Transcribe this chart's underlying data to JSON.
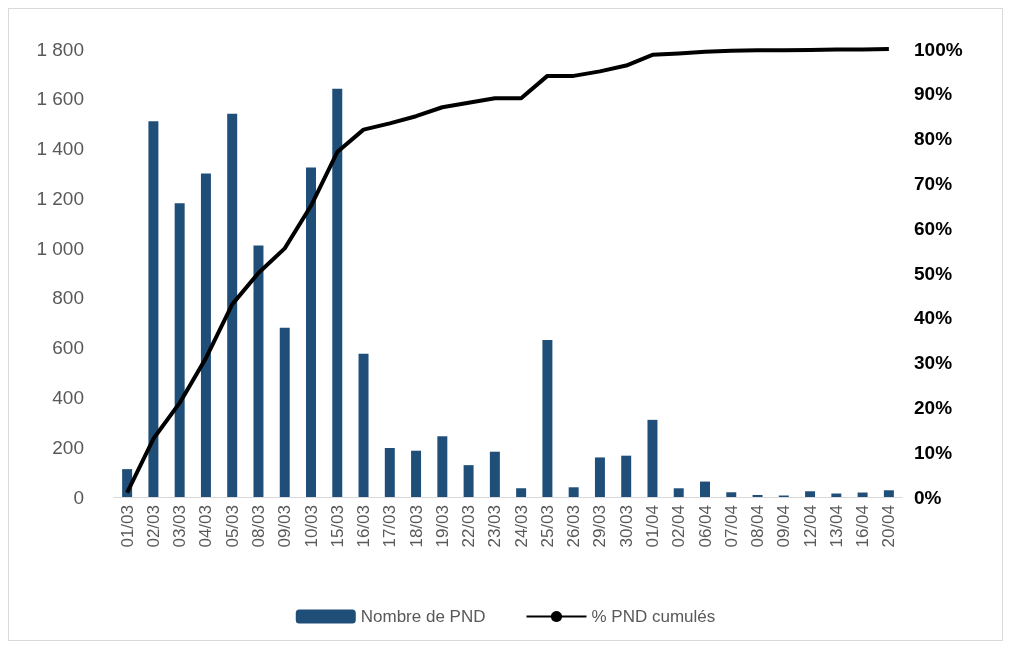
{
  "chart_data": {
    "type": "bar",
    "categories": [
      "01/03",
      "02/03",
      "03/03",
      "04/03",
      "05/03",
      "08/03",
      "09/03",
      "10/03",
      "15/03",
      "16/03",
      "17/03",
      "18/03",
      "19/03",
      "22/03",
      "23/03",
      "24/03",
      "25/03",
      "26/03",
      "29/03",
      "30/03",
      "01/04",
      "02/04",
      "06/04",
      "07/04",
      "08/04",
      "09/04",
      "12/04",
      "13/04",
      "16/04",
      "20/04"
    ],
    "series": [
      {
        "name": "Nombre de PND",
        "color": "#1f4e79",
        "values": [
          112,
          1510,
          1180,
          1300,
          1540,
          1010,
          680,
          1324,
          1640,
          576,
          197,
          186,
          244,
          128,
          182,
          35,
          631,
          39,
          159,
          166,
          310,
          35,
          62,
          19,
          8,
          6,
          23,
          14,
          18,
          27
        ]
      },
      {
        "name": "% PND cumulés",
        "type": "line",
        "axis": "y2",
        "color": "#000000",
        "values": [
          1,
          13,
          21,
          31,
          43,
          50,
          55.5,
          65,
          77,
          82,
          83.4,
          85,
          87,
          88,
          89,
          89,
          94,
          94,
          95,
          96.3,
          98.7,
          99,
          99.4,
          99.6,
          99.7,
          99.7,
          99.8,
          99.9,
          99.9,
          100
        ]
      }
    ],
    "ylim": [
      0,
      1800
    ],
    "yticks": [
      0,
      200,
      400,
      600,
      800,
      {
        "value": 1000,
        "label": "1 000"
      },
      {
        "value": 1200,
        "label": "1 200"
      },
      {
        "value": 1400,
        "label": "1 400"
      },
      {
        "value": 1600,
        "label": "1 600"
      },
      {
        "value": 1800,
        "label": "1 800"
      }
    ],
    "y2lim": [
      0,
      100
    ],
    "y2ticks": [
      {
        "value": 0,
        "label": "0%"
      },
      {
        "value": 10,
        "label": "10%"
      },
      {
        "value": 20,
        "label": "20%"
      },
      {
        "value": 30,
        "label": "30%"
      },
      {
        "value": 40,
        "label": "40%"
      },
      {
        "value": 50,
        "label": "50%"
      },
      {
        "value": 60,
        "label": "60%"
      },
      {
        "value": 70,
        "label": "70%"
      },
      {
        "value": 80,
        "label": "80%"
      },
      {
        "value": 90,
        "label": "90%"
      },
      {
        "value": 100,
        "label": "100%"
      }
    ],
    "grid": false,
    "legend": "bottom",
    "marker": "none"
  }
}
